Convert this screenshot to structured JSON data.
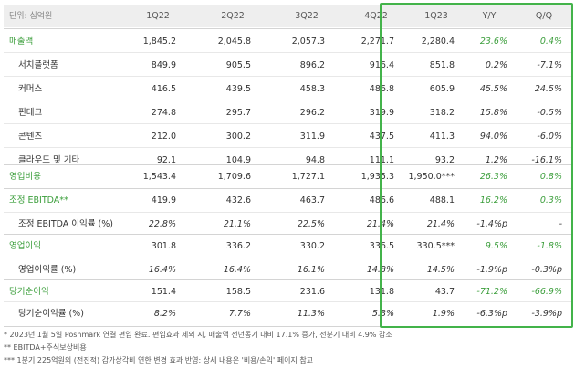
{
  "header": {
    "unit": "단위: 십억원",
    "cols": [
      "1Q22",
      "2Q22",
      "3Q22",
      "4Q22",
      "1Q23",
      "Y/Y",
      "Q/Q"
    ]
  },
  "rows": [
    {
      "id": "revenue",
      "label": "매출액",
      "values": [
        "1,845.2",
        "2,045.8",
        "2,057.3",
        "2,271.7",
        "2,280.4",
        "23.6%",
        "0.4%"
      ]
    },
    {
      "id": "search-platform",
      "label": "서치플랫폼",
      "values": [
        "849.9",
        "905.5",
        "896.2",
        "916.4",
        "851.8",
        "0.2%",
        "-7.1%"
      ]
    },
    {
      "id": "commerce",
      "label": "커머스",
      "values": [
        "416.5",
        "439.5",
        "458.3",
        "486.8",
        "605.9",
        "45.5%",
        "24.5%"
      ]
    },
    {
      "id": "fintech",
      "label": "핀테크",
      "values": [
        "274.8",
        "295.7",
        "296.2",
        "319.9",
        "318.2",
        "15.8%",
        "-0.5%"
      ]
    },
    {
      "id": "content",
      "label": "콘텐츠",
      "values": [
        "212.0",
        "300.2",
        "311.9",
        "437.5",
        "411.3",
        "94.0%",
        "-6.0%"
      ]
    },
    {
      "id": "cloud-etc",
      "label": "클라우드 및 기타",
      "values": [
        "92.1",
        "104.9",
        "94.8",
        "111.1",
        "93.2",
        "1.2%",
        "-16.1%"
      ]
    },
    {
      "id": "opex",
      "label": "영업비용",
      "values": [
        "1,543.4",
        "1,709.6",
        "1,727.1",
        "1,935.3",
        "1,950.0***",
        "26.3%",
        "0.8%"
      ]
    },
    {
      "id": "adj-ebitda",
      "label": "조정 EBITDA**",
      "values": [
        "419.9",
        "432.6",
        "463.7",
        "486.6",
        "488.1",
        "16.2%",
        "0.3%"
      ]
    },
    {
      "id": "adj-ebitda-margin",
      "label": "조정 EBITDA 이익률 (%)",
      "values": [
        "22.8%",
        "21.1%",
        "22.5%",
        "21.4%",
        "21.4%",
        "-1.4%p",
        "-"
      ]
    },
    {
      "id": "op-income",
      "label": "영업이익",
      "values": [
        "301.8",
        "336.2",
        "330.2",
        "336.5",
        "330.5***",
        "9.5%",
        "-1.8%"
      ]
    },
    {
      "id": "op-margin",
      "label": "영업이익률 (%)",
      "values": [
        "16.4%",
        "16.4%",
        "16.1%",
        "14.8%",
        "14.5%",
        "-1.9%p",
        "-0.3%p"
      ]
    },
    {
      "id": "net-income",
      "label": "당기순이익",
      "values": [
        "151.4",
        "158.5",
        "231.6",
        "131.8",
        "43.7",
        "-71.2%",
        "-66.9%"
      ]
    },
    {
      "id": "net-margin",
      "label": "당기순이익률 (%)",
      "values": [
        "8.2%",
        "7.7%",
        "11.3%",
        "5.8%",
        "1.9%",
        "-6.3%p",
        "-3.9%p"
      ]
    }
  ],
  "notes": [
    "* 2023년 1월 5일 Poshmark 연결 편입 완료. 편입효과 제외 시, 매출액 전년동기 대비 17.1% 증가, 전분기 대비 4.9% 감소",
    "** EBITDA+주식보상비용",
    "*** 1분기 225억원의 (전진적) 감가상각비 연한 변경 효과 반영: 상세 내용은 '비용/손익' 페이지 참고"
  ],
  "colors": {
    "green": "#3b9e3b",
    "box_border": "#43b34a",
    "header_bg": "#eeeeee"
  }
}
